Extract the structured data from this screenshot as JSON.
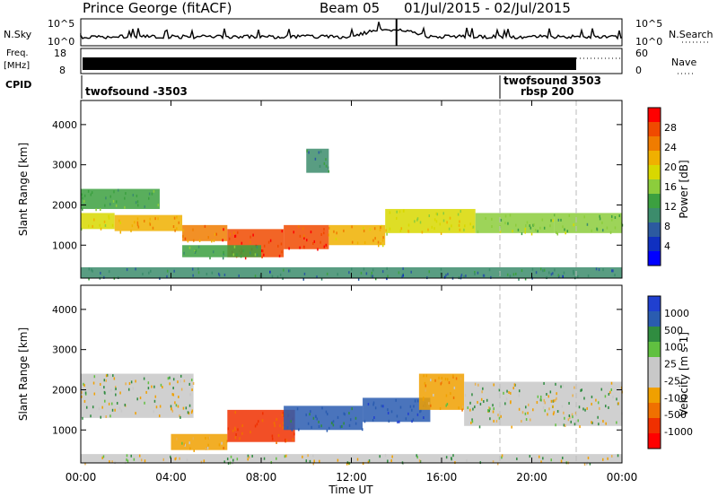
{
  "header": {
    "station": "Prince George (fitACF)",
    "beam": "Beam 05",
    "date_range": "01/Jul/2015 - 02/Jul/2015"
  },
  "top_panels": {
    "nsky_label": "N.Sky",
    "nsearch_label": "N.Search",
    "freq_label_1": "Freq.",
    "freq_label_2": "[MHz]",
    "nave_label": "Nave",
    "cpid_label": "CPID",
    "nsky_ticks": [
      "10^5",
      "10^0"
    ],
    "nsearch_ticks": [
      "10^5",
      "10^0"
    ],
    "freq_ticks": [
      "18",
      "8"
    ],
    "nave_ticks": [
      "60",
      "0"
    ],
    "cpid_segments": [
      {
        "label": "twofsound -3503",
        "start_hour": 0
      },
      {
        "label": "twofsound 3503",
        "start_hour": 18.5
      },
      {
        "label": "rbsp 200",
        "start_hour": 18.5
      }
    ]
  },
  "power_panel": {
    "ylabel": "Slant Range [km]",
    "colorbar_label": "Power [dB]",
    "colorbar_ticks": [
      "28",
      "24",
      "20",
      "16",
      "12",
      "8",
      "4"
    ],
    "colorbar_colors": [
      "#ff0000",
      "#f04a00",
      "#f07c00",
      "#f0b000",
      "#d8d800",
      "#8ccd3c",
      "#3ca040",
      "#3c8c6c",
      "#2c5aa0",
      "#1030c0",
      "#0000ff"
    ]
  },
  "velocity_panel": {
    "ylabel": "Slant Range [km]",
    "colorbar_label": "Velocity [m s-1]",
    "colorbar_ticks": [
      "1000",
      "500",
      "100",
      "25",
      "-25",
      "-100",
      "-500",
      "-1000"
    ],
    "colorbar_colors": [
      "#2040d0",
      "#2a5cb0",
      "#308c40",
      "#60c040",
      "#c8c8c8",
      "#c8c8c8",
      "#f0a000",
      "#f07000",
      "#f03000",
      "#ff0000"
    ]
  },
  "xaxis": {
    "label": "Time UT",
    "ticks": [
      "00:00",
      "04:00",
      "08:00",
      "12:00",
      "16:00",
      "20:00",
      "00:00"
    ]
  },
  "chart_data": [
    {
      "type": "heatmap",
      "title": "Prince George (fitACF) Beam 05 01/Jul/2015 - 02/Jul/2015",
      "quantity": "Power [dB]",
      "xlabel": "Time UT",
      "ylabel": "Slant Range [km]",
      "x_range_hours": [
        0,
        24
      ],
      "ylim": [
        180,
        4600
      ],
      "y_ticks": [
        1000,
        2000,
        3000,
        4000
      ],
      "zlim": [
        0,
        30
      ],
      "bands": [
        {
          "t0": 0.0,
          "t1": 1.5,
          "r0": 1400,
          "r1": 1800,
          "val": 18
        },
        {
          "t0": 1.5,
          "t1": 4.5,
          "r0": 1350,
          "r1": 1750,
          "val": 22
        },
        {
          "t0": 4.5,
          "t1": 6.5,
          "r0": 1100,
          "r1": 1500,
          "val": 25
        },
        {
          "t0": 6.5,
          "t1": 9.0,
          "r0": 700,
          "r1": 1400,
          "val": 28
        },
        {
          "t0": 9.0,
          "t1": 11.0,
          "r0": 900,
          "r1": 1500,
          "val": 27
        },
        {
          "t0": 11.0,
          "t1": 13.5,
          "r0": 1000,
          "r1": 1500,
          "val": 22
        },
        {
          "t0": 13.5,
          "t1": 17.5,
          "r0": 1300,
          "r1": 1900,
          "val": 18
        },
        {
          "t0": 17.5,
          "t1": 21.0,
          "r0": 1300,
          "r1": 1800,
          "val": 15
        },
        {
          "t0": 21.0,
          "t1": 24.0,
          "r0": 1300,
          "r1": 1800,
          "val": 14
        },
        {
          "t0": 0.0,
          "t1": 3.5,
          "r0": 1900,
          "r1": 2400,
          "val": 12
        },
        {
          "t0": 4.5,
          "t1": 8.0,
          "r0": 700,
          "r1": 1000,
          "val": 12
        },
        {
          "t0": 10.0,
          "t1": 11.0,
          "r0": 2800,
          "r1": 3400,
          "val": 10
        },
        {
          "t0": 0.0,
          "t1": 24.0,
          "r0": 180,
          "r1": 450,
          "val": 8
        }
      ]
    },
    {
      "type": "heatmap",
      "quantity": "Velocity [m s-1]",
      "xlabel": "Time UT",
      "ylabel": "Slant Range [km]",
      "x_range_hours": [
        0,
        24
      ],
      "ylim": [
        180,
        4600
      ],
      "y_ticks": [
        1000,
        2000,
        3000,
        4000
      ],
      "zlim": [
        -1000,
        1000
      ],
      "bands": [
        {
          "t0": 0.0,
          "t1": 5.0,
          "r0": 1300,
          "r1": 2400,
          "val": 0
        },
        {
          "t0": 4.0,
          "t1": 6.5,
          "r0": 500,
          "r1": 900,
          "val": -150
        },
        {
          "t0": 6.5,
          "t1": 9.5,
          "r0": 700,
          "r1": 1500,
          "val": -700
        },
        {
          "t0": 9.0,
          "t1": 12.5,
          "r0": 1000,
          "r1": 1600,
          "val": 400
        },
        {
          "t0": 12.5,
          "t1": 15.5,
          "r0": 1200,
          "r1": 1800,
          "val": 600
        },
        {
          "t0": 15.0,
          "t1": 17.0,
          "r0": 1500,
          "r1": 2400,
          "val": -200
        },
        {
          "t0": 17.0,
          "t1": 24.0,
          "r0": 1100,
          "r1": 2200,
          "val": 0
        },
        {
          "t0": 0.0,
          "t1": 24.0,
          "r0": 180,
          "r1": 400,
          "val": 0
        }
      ]
    },
    {
      "type": "line",
      "quantity": "N.Sky",
      "x_range_hours": [
        0,
        24
      ],
      "level": "about 10^2, rising near 14:00 UT"
    },
    {
      "type": "line",
      "quantity": "Freq. [MHz]",
      "x_range_hours": [
        0,
        22
      ],
      "ylim": [
        8,
        18
      ]
    }
  ]
}
